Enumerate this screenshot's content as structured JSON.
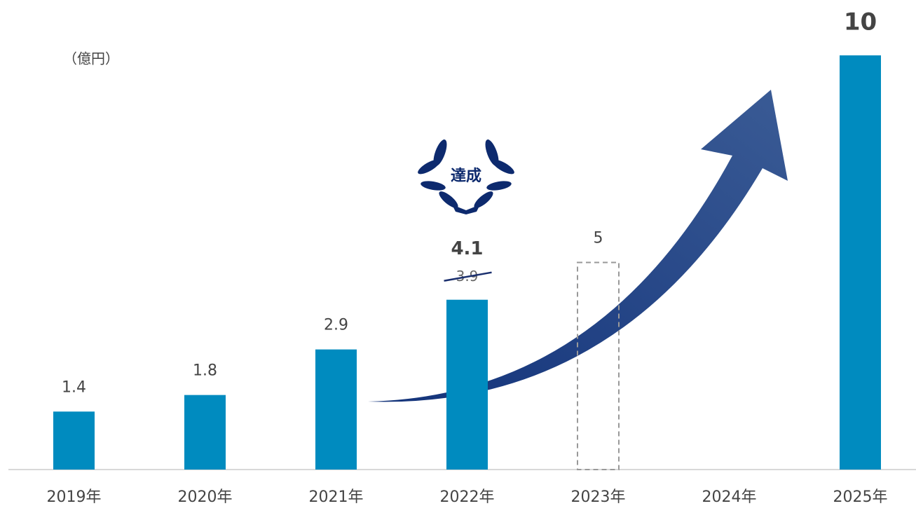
{
  "chart_data": {
    "type": "bar",
    "unit_label": "（億円）",
    "categories": [
      "2019年",
      "2020年",
      "2021年",
      "2022年",
      "2023年",
      "2024年",
      "2025年"
    ],
    "values": [
      1.4,
      1.8,
      2.9,
      4.1,
      5,
      null,
      10
    ],
    "bar_styles": [
      "solid",
      "solid",
      "solid",
      "solid",
      "dashed",
      null,
      "solid"
    ],
    "label_weights": [
      "normal",
      "normal",
      "normal",
      "bold",
      "normal",
      null,
      "bold"
    ],
    "color": "#008bbf",
    "ylim": [
      0,
      10
    ],
    "crossed_out": {
      "category_index": 3,
      "value": 3.9
    },
    "badge": "達成"
  }
}
